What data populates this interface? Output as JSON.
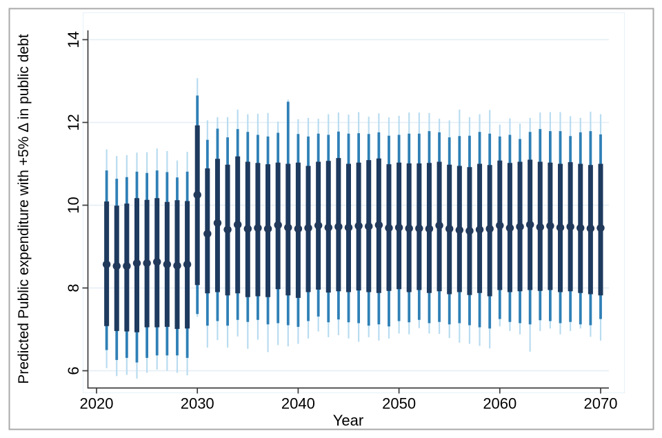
{
  "figure": {
    "background": "#ffffff",
    "border_color": "#a9a9a9",
    "plotregion_border_color": "#e9f2f8"
  },
  "chart_data": {
    "type": "bar",
    "subtype": "nested-confidence-interval-spikes-with-point-estimates",
    "title": "",
    "xlabel": "Year",
    "ylabel": "Predicted Public expenditure with +5% Δ in public debt",
    "xlim": [
      2019.2,
      2070.9
    ],
    "ylim": [
      5.6,
      14.35
    ],
    "yticks": [
      6,
      8,
      10,
      12,
      14
    ],
    "xticks": [
      2020,
      2030,
      2040,
      2050,
      2060,
      2070
    ],
    "grid": "horizontal gridlines at y ticks, very light blue",
    "legend_position": "none",
    "colors": {
      "outer_interval": "#b9dcf0",
      "middle_interval": "#2f80b6",
      "inner_interval": "#1e3a5e",
      "point_estimate": "#21395b",
      "gridline": "#e4eef6",
      "axis": "#3c3c3c",
      "text": "#000000"
    },
    "interval_note": "Each year shows a navy point estimate with three nested vertical intervals: thick navy (inner), medium steel-blue (middle), thin pale-blue (outer).",
    "bars": [
      {
        "year": 2021,
        "dot": 8.57,
        "inner": [
          7.08,
          10.09
        ],
        "mid": [
          6.5,
          10.84
        ],
        "outer": [
          6.06,
          11.35
        ]
      },
      {
        "year": 2022,
        "dot": 8.53,
        "inner": [
          6.96,
          9.99
        ],
        "mid": [
          6.26,
          10.64
        ],
        "outer": [
          5.87,
          11.19
        ]
      },
      {
        "year": 2023,
        "dot": 8.53,
        "inner": [
          6.95,
          10.04
        ],
        "mid": [
          6.31,
          10.68
        ],
        "outer": [
          5.9,
          11.21
        ]
      },
      {
        "year": 2024,
        "dot": 8.6,
        "inner": [
          6.93,
          10.17
        ],
        "mid": [
          6.2,
          10.81
        ],
        "outer": [
          5.81,
          11.27
        ]
      },
      {
        "year": 2025,
        "dot": 8.6,
        "inner": [
          7.05,
          10.13
        ],
        "mid": [
          6.31,
          10.78
        ],
        "outer": [
          5.95,
          11.28
        ]
      },
      {
        "year": 2026,
        "dot": 8.63,
        "inner": [
          7.05,
          10.17
        ],
        "mid": [
          6.37,
          10.84
        ],
        "outer": [
          6.03,
          11.37
        ]
      },
      {
        "year": 2027,
        "dot": 8.57,
        "inner": [
          7.06,
          10.08
        ],
        "mid": [
          6.37,
          10.8
        ],
        "outer": [
          6.0,
          11.31
        ]
      },
      {
        "year": 2028,
        "dot": 8.54,
        "inner": [
          7.01,
          10.12
        ],
        "mid": [
          6.37,
          10.67
        ],
        "outer": [
          5.95,
          11.08
        ]
      },
      {
        "year": 2029,
        "dot": 8.57,
        "inner": [
          7.02,
          10.1
        ],
        "mid": [
          6.31,
          10.81
        ],
        "outer": [
          5.89,
          11.29
        ]
      },
      {
        "year": 2030,
        "dot": 10.25,
        "inner": [
          8.07,
          11.93
        ],
        "mid": [
          7.37,
          12.65
        ],
        "outer": [
          7.3,
          13.07
        ]
      },
      {
        "year": 2031,
        "dot": 9.31,
        "inner": [
          7.87,
          10.89
        ],
        "mid": [
          7.09,
          11.58
        ],
        "outer": [
          6.56,
          12.05
        ]
      },
      {
        "year": 2032,
        "dot": 9.57,
        "inner": [
          7.9,
          11.12
        ],
        "mid": [
          7.2,
          11.85
        ],
        "outer": [
          6.74,
          12.13
        ]
      },
      {
        "year": 2033,
        "dot": 9.41,
        "inner": [
          7.82,
          10.98
        ],
        "mid": [
          7.09,
          11.64
        ],
        "outer": [
          6.56,
          12.13
        ]
      },
      {
        "year": 2034,
        "dot": 9.53,
        "inner": [
          7.87,
          11.18
        ],
        "mid": [
          7.23,
          11.84
        ],
        "outer": [
          6.83,
          12.31
        ]
      },
      {
        "year": 2035,
        "dot": 9.43,
        "inner": [
          7.78,
          11.05
        ],
        "mid": [
          7.18,
          11.77
        ],
        "outer": [
          6.53,
          12.2
        ]
      },
      {
        "year": 2036,
        "dot": 9.45,
        "inner": [
          7.8,
          11.02
        ],
        "mid": [
          7.23,
          11.7
        ],
        "outer": [
          6.75,
          12.21
        ]
      },
      {
        "year": 2037,
        "dot": 9.43,
        "inner": [
          7.78,
          10.99
        ],
        "mid": [
          7.12,
          11.66
        ],
        "outer": [
          6.45,
          12.23
        ]
      },
      {
        "year": 2038,
        "dot": 9.52,
        "inner": [
          7.97,
          11.03
        ],
        "mid": [
          7.15,
          11.75
        ],
        "outer": [
          6.62,
          12.02
        ]
      },
      {
        "year": 2039,
        "dot": 9.46,
        "inner": [
          7.82,
          11.0
        ],
        "mid": [
          7.1,
          12.5
        ],
        "outer": [
          6.59,
          12.55
        ]
      },
      {
        "year": 2040,
        "dot": 9.43,
        "inner": [
          7.76,
          11.03
        ],
        "mid": [
          7.06,
          11.72
        ],
        "outer": [
          6.65,
          12.08
        ]
      },
      {
        "year": 2041,
        "dot": 9.45,
        "inner": [
          7.9,
          10.95
        ],
        "mid": [
          7.2,
          11.66
        ],
        "outer": [
          6.78,
          12.11
        ]
      },
      {
        "year": 2042,
        "dot": 9.51,
        "inner": [
          7.96,
          11.05
        ],
        "mid": [
          7.31,
          11.73
        ],
        "outer": [
          6.95,
          12.09
        ]
      },
      {
        "year": 2043,
        "dot": 9.46,
        "inner": [
          7.89,
          11.07
        ],
        "mid": [
          7.17,
          11.7
        ],
        "outer": [
          6.81,
          12.2
        ]
      },
      {
        "year": 2044,
        "dot": 9.48,
        "inner": [
          7.92,
          11.14
        ],
        "mid": [
          7.24,
          11.78
        ],
        "outer": [
          6.86,
          12.24
        ]
      },
      {
        "year": 2045,
        "dot": 9.46,
        "inner": [
          7.9,
          11.0
        ],
        "mid": [
          7.17,
          11.73
        ],
        "outer": [
          6.78,
          12.19
        ]
      },
      {
        "year": 2046,
        "dot": 9.5,
        "inner": [
          7.94,
          11.03
        ],
        "mid": [
          7.15,
          11.74
        ],
        "outer": [
          6.7,
          12.25
        ]
      },
      {
        "year": 2047,
        "dot": 9.49,
        "inner": [
          7.9,
          11.09
        ],
        "mid": [
          7.09,
          11.72
        ],
        "outer": [
          6.81,
          12.14
        ]
      },
      {
        "year": 2048,
        "dot": 9.52,
        "inner": [
          7.88,
          11.13
        ],
        "mid": [
          7.12,
          11.76
        ],
        "outer": [
          6.73,
          12.22
        ]
      },
      {
        "year": 2049,
        "dot": 9.45,
        "inner": [
          7.93,
          10.99
        ],
        "mid": [
          7.07,
          11.68
        ],
        "outer": [
          6.78,
          12.12
        ]
      },
      {
        "year": 2050,
        "dot": 9.46,
        "inner": [
          7.97,
          11.03
        ],
        "mid": [
          7.2,
          11.7
        ],
        "outer": [
          6.9,
          12.16
        ]
      },
      {
        "year": 2051,
        "dot": 9.44,
        "inner": [
          7.9,
          11.01
        ],
        "mid": [
          7.17,
          11.73
        ],
        "outer": [
          6.88,
          12.24
        ]
      },
      {
        "year": 2052,
        "dot": 9.44,
        "inner": [
          7.95,
          11.01
        ],
        "mid": [
          7.23,
          11.73
        ],
        "outer": [
          7.03,
          12.24
        ]
      },
      {
        "year": 2053,
        "dot": 9.43,
        "inner": [
          7.88,
          11.02
        ],
        "mid": [
          7.15,
          11.79
        ],
        "outer": [
          6.9,
          12.23
        ]
      },
      {
        "year": 2054,
        "dot": 9.51,
        "inner": [
          7.92,
          11.05
        ],
        "mid": [
          7.18,
          11.76
        ],
        "outer": [
          6.89,
          12.09
        ]
      },
      {
        "year": 2055,
        "dot": 9.43,
        "inner": [
          7.85,
          10.98
        ],
        "mid": [
          7.12,
          11.64
        ],
        "outer": [
          6.79,
          12.05
        ]
      },
      {
        "year": 2056,
        "dot": 9.4,
        "inner": [
          7.9,
          10.95
        ],
        "mid": [
          7.15,
          11.67
        ],
        "outer": [
          6.68,
          12.31
        ]
      },
      {
        "year": 2057,
        "dot": 9.38,
        "inner": [
          7.83,
          10.92
        ],
        "mid": [
          7.1,
          11.68
        ],
        "outer": [
          6.65,
          12.13
        ]
      },
      {
        "year": 2058,
        "dot": 9.41,
        "inner": [
          7.88,
          11.0
        ],
        "mid": [
          7.05,
          11.77
        ],
        "outer": [
          6.6,
          12.2
        ]
      },
      {
        "year": 2059,
        "dot": 9.43,
        "inner": [
          7.8,
          10.97
        ],
        "mid": [
          7.02,
          11.73
        ],
        "outer": [
          6.54,
          12.3
        ]
      },
      {
        "year": 2060,
        "dot": 9.51,
        "inner": [
          7.95,
          11.08
        ],
        "mid": [
          7.25,
          11.66
        ],
        "outer": [
          7.07,
          11.95
        ]
      },
      {
        "year": 2061,
        "dot": 9.45,
        "inner": [
          7.9,
          11.02
        ],
        "mid": [
          7.18,
          11.7
        ],
        "outer": [
          6.96,
          12.1
        ]
      },
      {
        "year": 2062,
        "dot": 9.48,
        "inner": [
          7.92,
          11.05
        ],
        "mid": [
          7.15,
          11.6
        ],
        "outer": [
          6.88,
          11.97
        ]
      },
      {
        "year": 2063,
        "dot": 9.53,
        "inner": [
          7.95,
          11.1
        ],
        "mid": [
          7.12,
          11.77
        ],
        "outer": [
          6.46,
          12.11
        ]
      },
      {
        "year": 2064,
        "dot": 9.47,
        "inner": [
          7.93,
          11.05
        ],
        "mid": [
          7.22,
          11.84
        ],
        "outer": [
          6.96,
          12.24
        ]
      },
      {
        "year": 2065,
        "dot": 9.5,
        "inner": [
          7.95,
          11.03
        ],
        "mid": [
          7.2,
          11.79
        ],
        "outer": [
          7.02,
          12.25
        ]
      },
      {
        "year": 2066,
        "dot": 9.46,
        "inner": [
          7.9,
          11.0
        ],
        "mid": [
          7.15,
          11.79
        ],
        "outer": [
          6.88,
          12.25
        ]
      },
      {
        "year": 2067,
        "dot": 9.48,
        "inner": [
          7.92,
          11.04
        ],
        "mid": [
          7.18,
          11.67
        ],
        "outer": [
          6.96,
          12.15
        ]
      },
      {
        "year": 2068,
        "dot": 9.45,
        "inner": [
          7.88,
          11.0
        ],
        "mid": [
          7.12,
          11.76
        ],
        "outer": [
          7.02,
          12.11
        ]
      },
      {
        "year": 2069,
        "dot": 9.44,
        "inner": [
          7.85,
          10.97
        ],
        "mid": [
          7.1,
          11.79
        ],
        "outer": [
          6.82,
          12.26
        ]
      },
      {
        "year": 2070,
        "dot": 9.45,
        "inner": [
          7.82,
          11.0
        ],
        "mid": [
          7.25,
          11.71
        ],
        "outer": [
          6.73,
          12.2
        ]
      }
    ]
  }
}
